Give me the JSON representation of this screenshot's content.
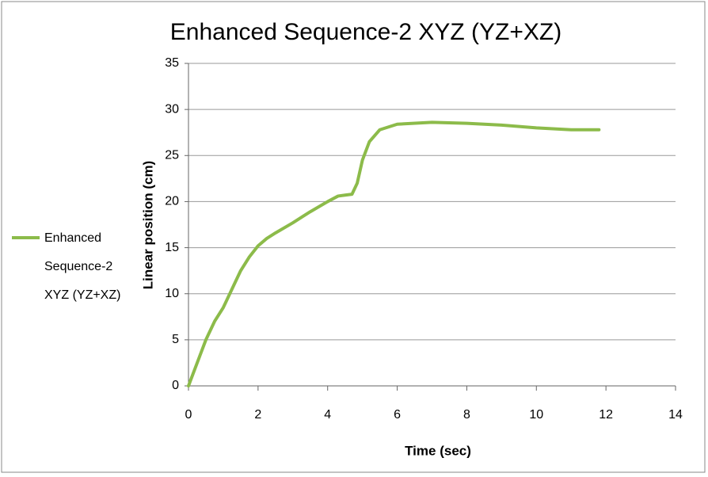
{
  "chart_data": {
    "type": "line",
    "title": "Enhanced Sequence-2 XYZ (YZ+XZ)",
    "x_label": "Time (sec)",
    "y_label": "Linear position (cm)",
    "x": [
      0,
      0.25,
      0.5,
      0.75,
      1,
      1.25,
      1.5,
      1.75,
      2,
      2.25,
      2.5,
      3,
      3.5,
      4,
      4.3,
      4.5,
      4.7,
      4.85,
      5,
      5.2,
      5.5,
      6,
      7,
      8,
      9,
      10,
      11,
      11.8
    ],
    "series": [
      {
        "name": "Enhanced Sequence-2 XYZ (YZ+XZ)",
        "color": "#8cbb4a",
        "values": [
          0,
          2.5,
          5,
          7,
          8.5,
          10.5,
          12.5,
          14,
          15.2,
          16,
          16.6,
          17.7,
          18.9,
          20,
          20.6,
          20.7,
          20.8,
          22,
          24.5,
          26.5,
          27.8,
          28.4,
          28.6,
          28.5,
          28.3,
          28.0,
          27.8,
          27.8
        ]
      }
    ],
    "xlim": [
      0,
      14
    ],
    "xticks": [
      0,
      2,
      4,
      6,
      8,
      10,
      12,
      14
    ],
    "ylim": [
      0,
      35
    ],
    "yticks": [
      0,
      5,
      10,
      15,
      20,
      25,
      30,
      35
    ],
    "grid": true,
    "legend": "left"
  }
}
